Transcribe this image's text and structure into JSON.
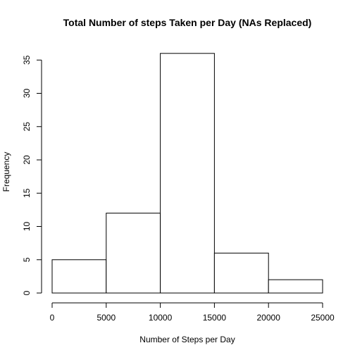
{
  "chart_data": {
    "type": "bar",
    "title": "Total Number of steps Taken per Day (NAs Replaced)",
    "xlabel": "Number of Steps per Day",
    "ylabel": "Frequency",
    "bins": [
      {
        "from": 0,
        "to": 5000,
        "count": 5
      },
      {
        "from": 5000,
        "to": 10000,
        "count": 12
      },
      {
        "from": 10000,
        "to": 15000,
        "count": 36
      },
      {
        "from": 15000,
        "to": 20000,
        "count": 6
      },
      {
        "from": 20000,
        "to": 25000,
        "count": 2
      }
    ],
    "x_ticks": [
      "0",
      "5000",
      "10000",
      "15000",
      "20000",
      "25000"
    ],
    "y_ticks": [
      "0",
      "5",
      "10",
      "15",
      "20",
      "25",
      "30",
      "35"
    ],
    "xlim": [
      0,
      25000
    ],
    "ylim": [
      0,
      36
    ],
    "grid": false,
    "legend": "none"
  }
}
